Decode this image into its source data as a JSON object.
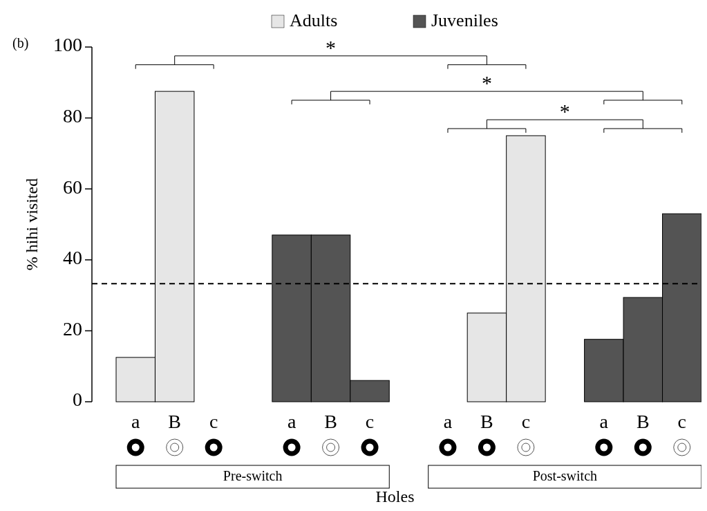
{
  "chart_data": {
    "type": "bar",
    "title": "(b)",
    "xlabel": "Holes",
    "ylabel": "% hihi visited",
    "categories": [
      "a",
      "B",
      "c",
      null,
      "a",
      "B",
      "c",
      null,
      "a",
      "B",
      "c",
      null,
      "a",
      "B",
      "c"
    ],
    "series": [
      {
        "name": "Adults",
        "color": "#e6e6e6",
        "values": [
          12.5,
          87.5,
          0,
          null,
          null,
          null,
          null,
          null,
          0,
          25,
          75,
          null,
          null,
          null,
          null
        ]
      },
      {
        "name": "Juveniles",
        "color": "#545454",
        "values": [
          null,
          null,
          null,
          null,
          47,
          47,
          6,
          null,
          null,
          null,
          null,
          null,
          17.6,
          29.4,
          53
        ]
      }
    ],
    "ylim": [
      0,
      100
    ],
    "yticks": [
      0,
      20,
      40,
      60,
      80,
      100
    ],
    "ref_lines": [
      {
        "axis": "y",
        "value": 33.3,
        "line_style": "dashed",
        "color": "#000000"
      }
    ],
    "annotations": [
      "*",
      "*",
      "*",
      "Pre-switch",
      "Post-switch"
    ],
    "legend": "top",
    "grid": false
  }
}
